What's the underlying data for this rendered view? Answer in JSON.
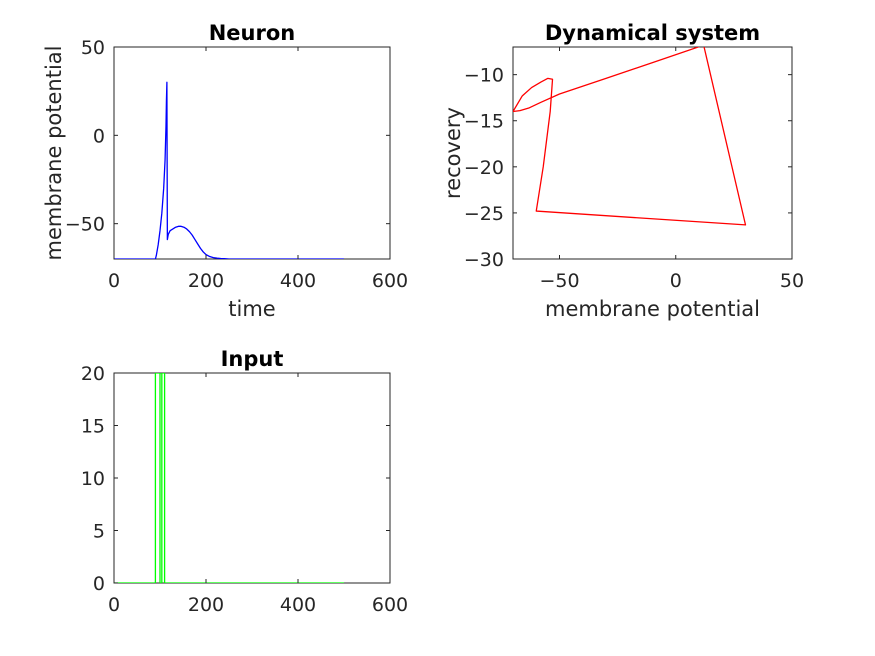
{
  "figure": {
    "background": "#ffffff"
  },
  "chart_data": [
    {
      "id": "neuron",
      "type": "line",
      "title": "Neuron",
      "xlabel": "time",
      "ylabel": "membrane potential",
      "xlim": [
        0,
        600
      ],
      "ylim": [
        -70,
        50
      ],
      "xticks": [
        0,
        200,
        400,
        600
      ],
      "yticks": [
        -50,
        0,
        50
      ],
      "grid": false,
      "series": [
        {
          "color": "#0000ff",
          "x": [
            0,
            90,
            92,
            96,
            100,
            104,
            108,
            111,
            113,
            114,
            115,
            116,
            118,
            122,
            128,
            134,
            140,
            146,
            152,
            158,
            164,
            170,
            176,
            182,
            188,
            194,
            200,
            208,
            216,
            224,
            232,
            240,
            250,
            270,
            300,
            350,
            400,
            450,
            500
          ],
          "y": [
            -70,
            -70,
            -68,
            -62,
            -54,
            -44,
            -30,
            -14,
            5,
            20,
            30,
            -59,
            -56,
            -54,
            -53,
            -52,
            -51.5,
            -51.5,
            -52,
            -53,
            -54.5,
            -56.5,
            -59,
            -61.5,
            -64,
            -66,
            -67.5,
            -68.6,
            -69.2,
            -69.5,
            -69.7,
            -69.8,
            -70,
            -70,
            -70,
            -70,
            -70,
            -70,
            -70
          ]
        }
      ]
    },
    {
      "id": "dynamical",
      "type": "line",
      "title": "Dynamical system",
      "xlabel": "membrane potential",
      "ylabel": "recovery",
      "xlim": [
        -70,
        50
      ],
      "ylim": [
        -30,
        -7
      ],
      "xticks": [
        -50,
        0,
        50
      ],
      "yticks": [
        -30,
        -25,
        -20,
        -15,
        -10
      ],
      "grid": false,
      "series": [
        {
          "color": "#ff0000",
          "x": [
            -70,
            -66,
            -62,
            -58,
            -55,
            -53,
            -54,
            -57,
            -60,
            30,
            12,
            -10,
            -30,
            -50,
            -58,
            -63,
            -67,
            -70
          ],
          "y": [
            -14,
            -12.3,
            -11.4,
            -10.8,
            -10.4,
            -10.5,
            -14,
            -20,
            -24.8,
            -26.3,
            -6.8,
            -8.7,
            -10.4,
            -12.1,
            -13,
            -13.6,
            -13.9,
            -14
          ]
        }
      ]
    },
    {
      "id": "input",
      "type": "line",
      "title": "Input",
      "xlabel": "",
      "ylabel": "",
      "xlim": [
        0,
        600
      ],
      "ylim": [
        0,
        20
      ],
      "xticks": [
        0,
        200,
        400,
        600
      ],
      "yticks": [
        0,
        5,
        10,
        15,
        20
      ],
      "grid": false,
      "series": [
        {
          "color": "#00ff00",
          "x": [
            0,
            90,
            90,
            100,
            100,
            104,
            104,
            110,
            110,
            500
          ],
          "y": [
            0,
            0,
            20,
            20,
            0,
            0,
            20,
            20,
            0,
            0
          ]
        }
      ]
    }
  ]
}
